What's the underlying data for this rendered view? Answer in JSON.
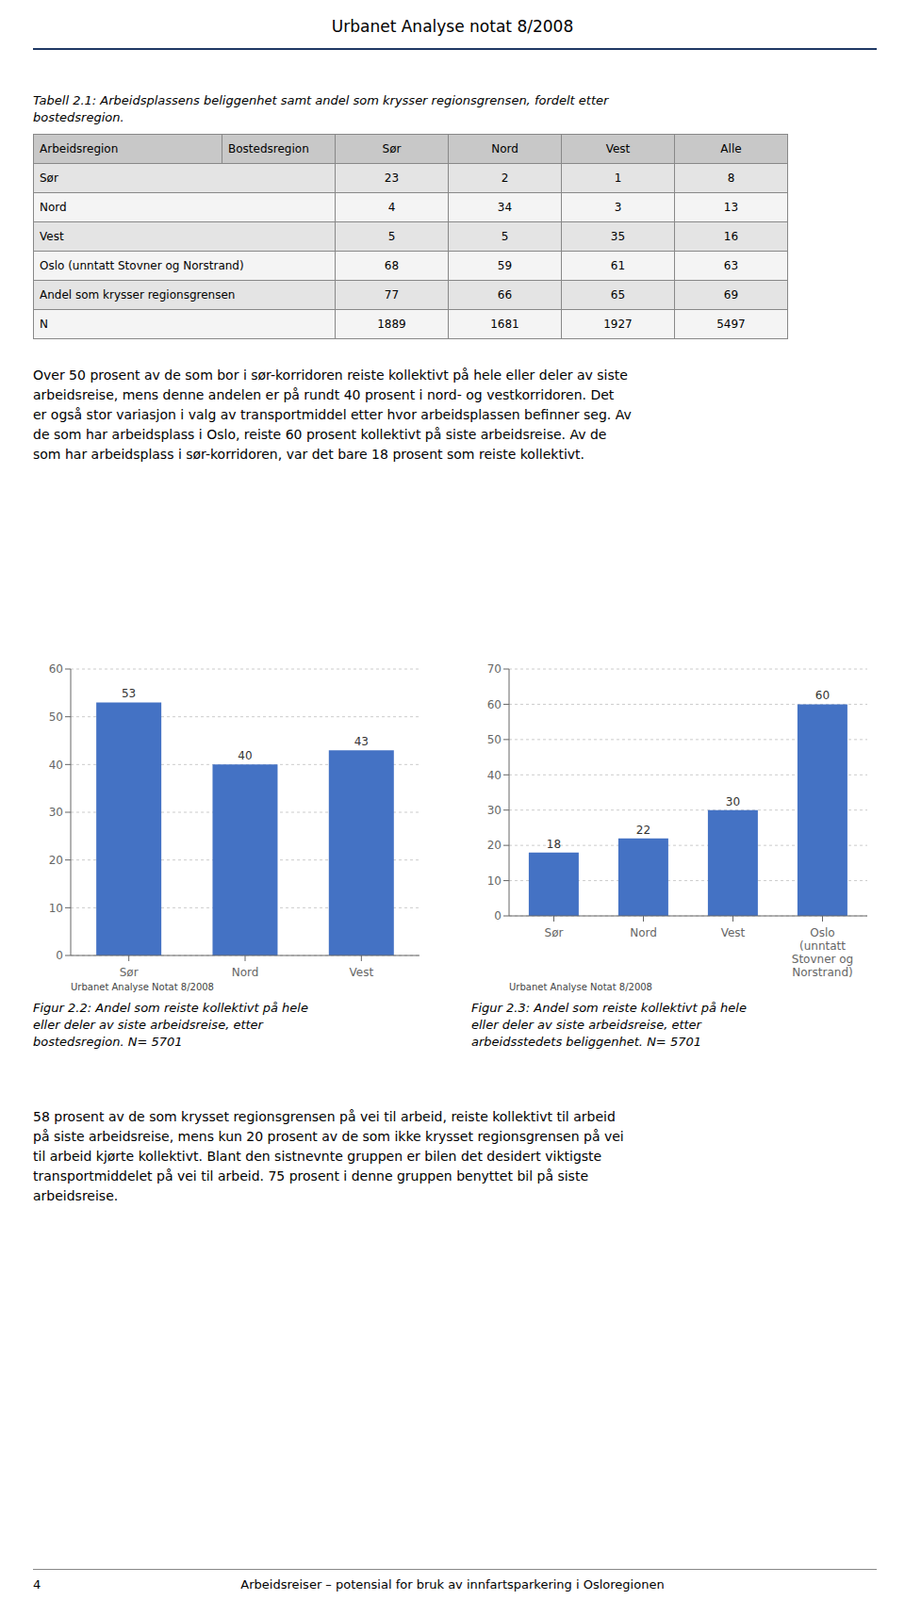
{
  "header_title": "Urbanet Analyse notat 8/2008",
  "table": {
    "title_lines": [
      "Tabell 2.1: Arbeidsplassens beliggenhet samt andel som krysser regionsgrensen, fordelt etter",
      "bostedsregion."
    ],
    "columns": [
      "Arbeidsregion",
      "Bostedsregion",
      "Sør",
      "Nord",
      "Vest",
      "Alle"
    ],
    "rows": [
      [
        "Sør",
        "23",
        "2",
        "1",
        "8"
      ],
      [
        "Nord",
        "4",
        "34",
        "3",
        "13"
      ],
      [
        "Vest",
        "5",
        "5",
        "35",
        "16"
      ],
      [
        "Oslo (unntatt Stovner og Norstrand)",
        "68",
        "59",
        "61",
        "63"
      ],
      [
        "Andel som krysser regionsgrensen",
        "77",
        "66",
        "65",
        "69"
      ],
      [
        "N",
        "1889",
        "1681",
        "1927",
        "5497"
      ]
    ]
  },
  "body_text1_lines": [
    "Over 50 prosent av de som bor i sør-korridoren reiste kollektivt på hele eller deler av siste",
    "arbeidsreise, mens denne andelen er på rundt 40 prosent i nord- og vestkorridoren. Det",
    "er også stor variasjon i valg av transportmiddel etter hvor arbeidsplassen befinner seg. Av",
    "de som har arbeidsplass i Oslo, reiste 60 prosent kollektivt på siste arbeidsreise. Av de",
    "som har arbeidsplass i sør-korridoren, var det bare 18 prosent som reiste kollektivt."
  ],
  "chart_data": [
    {
      "type": "bar",
      "title": "Figur 2.2: Andel som reiste kollektivt på hele\neller deler av siste arbeidsreise, etter\nbostedsregion. N= 5701",
      "categories": [
        "Sør",
        "Nord",
        "Vest"
      ],
      "values": [
        53,
        40,
        43
      ],
      "color": "#4472c4",
      "ylim": [
        0,
        60
      ],
      "yticks": [
        0,
        10,
        20,
        30,
        40,
        50,
        60
      ],
      "grid": true,
      "data_labels": true,
      "annotations": [
        "Urbanet Analyse Notat 8/2008"
      ]
    },
    {
      "type": "bar",
      "title": "Figur 2.3: Andel som reiste kollektivt på hele\neller deler av siste arbeidsreise, etter\narbeidsstedets beliggenhet. N= 5701",
      "categories": [
        "Sør",
        "Nord",
        "Vest",
        "Oslo\n(unntatt\nStovner og\nNorstrand)"
      ],
      "values": [
        18,
        22,
        30,
        60
      ],
      "color": "#4472c4",
      "ylim": [
        0,
        70
      ],
      "yticks": [
        0,
        10,
        20,
        30,
        40,
        50,
        60,
        70
      ],
      "grid": true,
      "data_labels": true,
      "annotations": [
        "Urbanet Analyse Notat 8/2008"
      ]
    }
  ],
  "body_text2_lines": [
    "58 prosent av de som krysset regionsgrensen på vei til arbeid, reiste kollektivt til arbeid",
    "på siste arbeidsreise, mens kun 20 prosent av de som ikke krysset regionsgrensen på vei",
    "til arbeid kjørte kollektivt. Blant den sistnevnte gruppen er bilen det desidert viktigste",
    "transportmiddelet på vei til arbeid. 75 prosent i denne gruppen benyttet bil på siste",
    "arbeidsreise."
  ],
  "page_number": "4",
  "footer_text": "Arbeidsreiser – potensial for bruk av innfartsparkering i Osloregionen"
}
